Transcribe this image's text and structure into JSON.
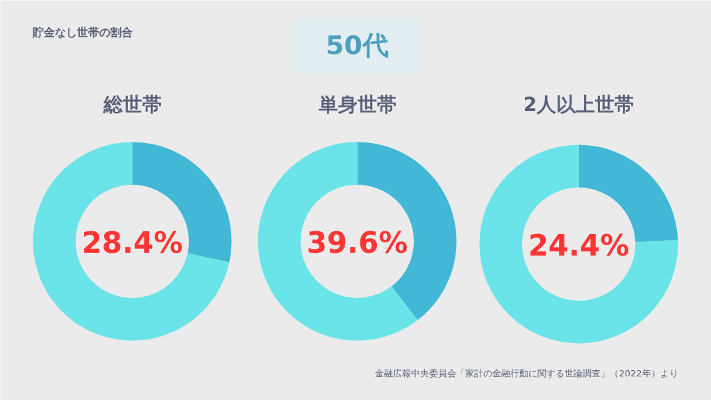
{
  "chart_data": [
    {
      "type": "other",
      "title": "貯金なし世帯の割合",
      "subtitle": "50代",
      "annotations": [
        "金融広報中央委員会「家計の金融行動に関する世論調査」（2022年）より"
      ]
    },
    {
      "type": "donut",
      "title": "総世帯",
      "categories": [
        null,
        null
      ],
      "values": [
        28.4,
        71.6
      ],
      "colors": [
        "#42b8d6",
        "#6ae4e8"
      ],
      "annotations": [
        "28.4%"
      ]
    },
    {
      "type": "donut",
      "title": "単身世帯",
      "categories": [
        null,
        null
      ],
      "values": [
        39.6,
        60.4
      ],
      "colors": [
        "#42b8d6",
        "#6ae4e8"
      ],
      "annotations": [
        "39.6%"
      ]
    },
    {
      "type": "donut",
      "title": "2人以上世帯",
      "categories": [
        null,
        null
      ],
      "values": [
        24.4,
        75.6
      ],
      "colors": [
        "#42b8d6",
        "#6ae4e8"
      ],
      "annotations": [
        "24.4%"
      ]
    }
  ]
}
